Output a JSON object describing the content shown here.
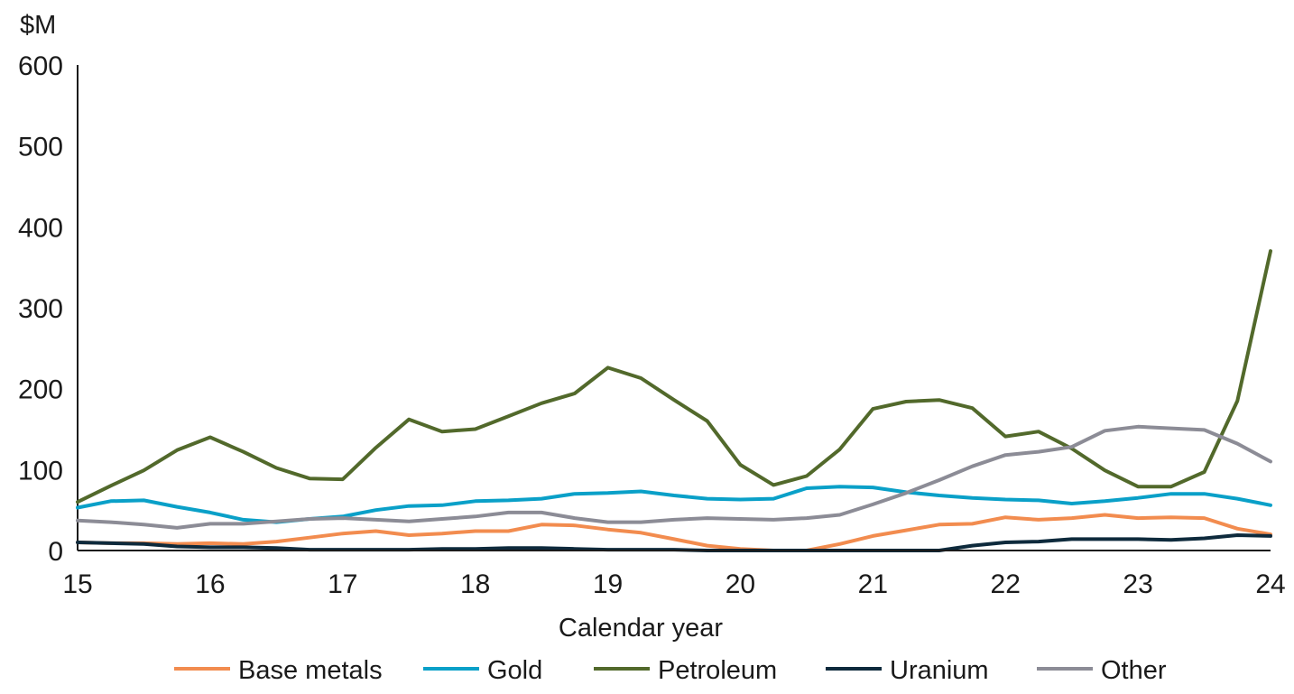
{
  "chart_data": {
    "type": "line",
    "ylabel": "$M",
    "xlabel": "Calendar year",
    "ylim": [
      0,
      600
    ],
    "yticks": [
      "0",
      "100",
      "200",
      "300",
      "400",
      "500",
      "600"
    ],
    "xlim": [
      15,
      24
    ],
    "xticks": [
      "15",
      "16",
      "17",
      "18",
      "19",
      "20",
      "21",
      "22",
      "23",
      "24"
    ],
    "legend_position": "bottom",
    "grid": false,
    "x": [
      15,
      15.25,
      15.5,
      15.75,
      16,
      16.25,
      16.5,
      16.75,
      17,
      17.25,
      17.5,
      17.75,
      18,
      18.25,
      18.5,
      18.75,
      19,
      19.25,
      19.5,
      19.75,
      20,
      20.25,
      20.5,
      20.75,
      21,
      21.25,
      21.5,
      21.75,
      22,
      22.25,
      22.5,
      22.75,
      23,
      23.25,
      23.5,
      23.75,
      24
    ],
    "series": [
      {
        "name": "Base metals",
        "color": "#f28c4f",
        "values": [
          10,
          9,
          9,
          8,
          9,
          8,
          11,
          16,
          21,
          24,
          19,
          21,
          24,
          24,
          32,
          31,
          26,
          22,
          14,
          6,
          2,
          0,
          0,
          8,
          18,
          25,
          32,
          33,
          41,
          38,
          40,
          44,
          40,
          41,
          40,
          27,
          20
        ]
      },
      {
        "name": "Gold",
        "color": "#0aa0c8",
        "values": [
          53,
          61,
          62,
          54,
          47,
          38,
          35,
          39,
          42,
          50,
          55,
          56,
          61,
          62,
          64,
          70,
          71,
          73,
          68,
          64,
          63,
          64,
          77,
          79,
          78,
          72,
          68,
          65,
          63,
          62,
          58,
          61,
          65,
          70,
          70,
          64,
          56
        ]
      },
      {
        "name": "Petroleum",
        "color": "#52692b",
        "values": [
          60,
          80,
          99,
          124,
          140,
          122,
          102,
          89,
          88,
          127,
          162,
          147,
          150,
          166,
          182,
          194,
          226,
          213,
          186,
          160,
          106,
          81,
          92,
          125,
          175,
          184,
          186,
          176,
          141,
          147,
          126,
          99,
          79,
          79,
          97,
          185,
          370
        ]
      },
      {
        "name": "Uranium",
        "color": "#0e2a3c",
        "values": [
          10,
          9,
          8,
          5,
          4,
          4,
          3,
          1,
          1,
          1,
          1,
          2,
          2,
          3,
          3,
          2,
          1,
          1,
          1,
          0,
          0,
          0,
          0,
          0,
          0,
          0,
          0,
          6,
          10,
          11,
          14,
          14,
          14,
          13,
          15,
          19,
          18
        ]
      },
      {
        "name": "Other",
        "color": "#8c8c96",
        "values": [
          37,
          35,
          32,
          28,
          33,
          33,
          36,
          39,
          40,
          38,
          36,
          39,
          42,
          47,
          47,
          40,
          35,
          35,
          38,
          40,
          39,
          38,
          40,
          44,
          57,
          71,
          87,
          104,
          118,
          122,
          128,
          148,
          153,
          151,
          149,
          132,
          110
        ]
      }
    ]
  }
}
